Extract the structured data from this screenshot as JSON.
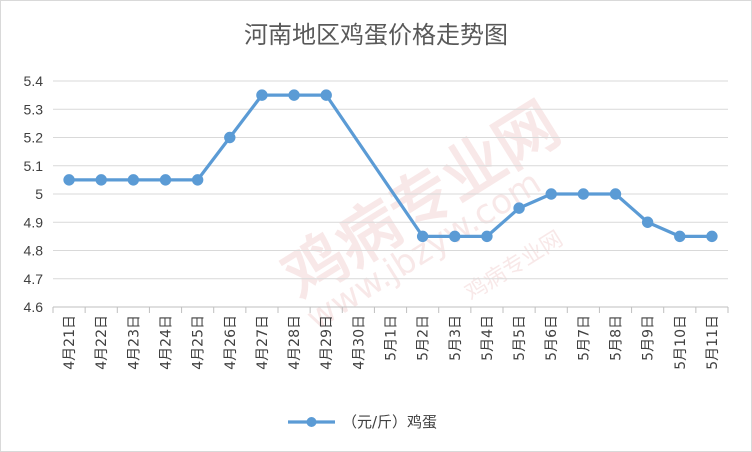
{
  "chart_data": {
    "type": "line",
    "title": "河南地区鸡蛋价格走势图",
    "categories": [
      "4月21日",
      "4月22日",
      "4月23日",
      "4月24日",
      "4月25日",
      "4月26日",
      "4月27日",
      "4月28日",
      "4月29日",
      "4月30日",
      "5月1日",
      "5月2日",
      "5月3日",
      "5月4日",
      "5月5日",
      "5月6日",
      "5月7日",
      "5月8日",
      "5月9日",
      "5月10日",
      "5月11日"
    ],
    "series": [
      {
        "name": "（元/斤）鸡蛋",
        "color": "#5b9bd5",
        "values": [
          5.05,
          5.05,
          5.05,
          5.05,
          5.05,
          5.2,
          5.35,
          5.35,
          5.35,
          null,
          null,
          4.85,
          4.85,
          4.85,
          4.95,
          5.0,
          5.0,
          5.0,
          4.9,
          4.85,
          4.85
        ]
      }
    ],
    "ylim": [
      4.6,
      5.4
    ],
    "yticks": [
      "4.6",
      "4.7",
      "4.8",
      "4.9",
      "5",
      "5.1",
      "5.2",
      "5.3",
      "5.4"
    ],
    "grid": true,
    "legend_position": "bottom",
    "xlabel": "",
    "ylabel": ""
  },
  "watermark": {
    "text_cn": "鸡病专业网",
    "text_url": "www.jbzyw.com",
    "text_small": "鸡病专业网"
  }
}
